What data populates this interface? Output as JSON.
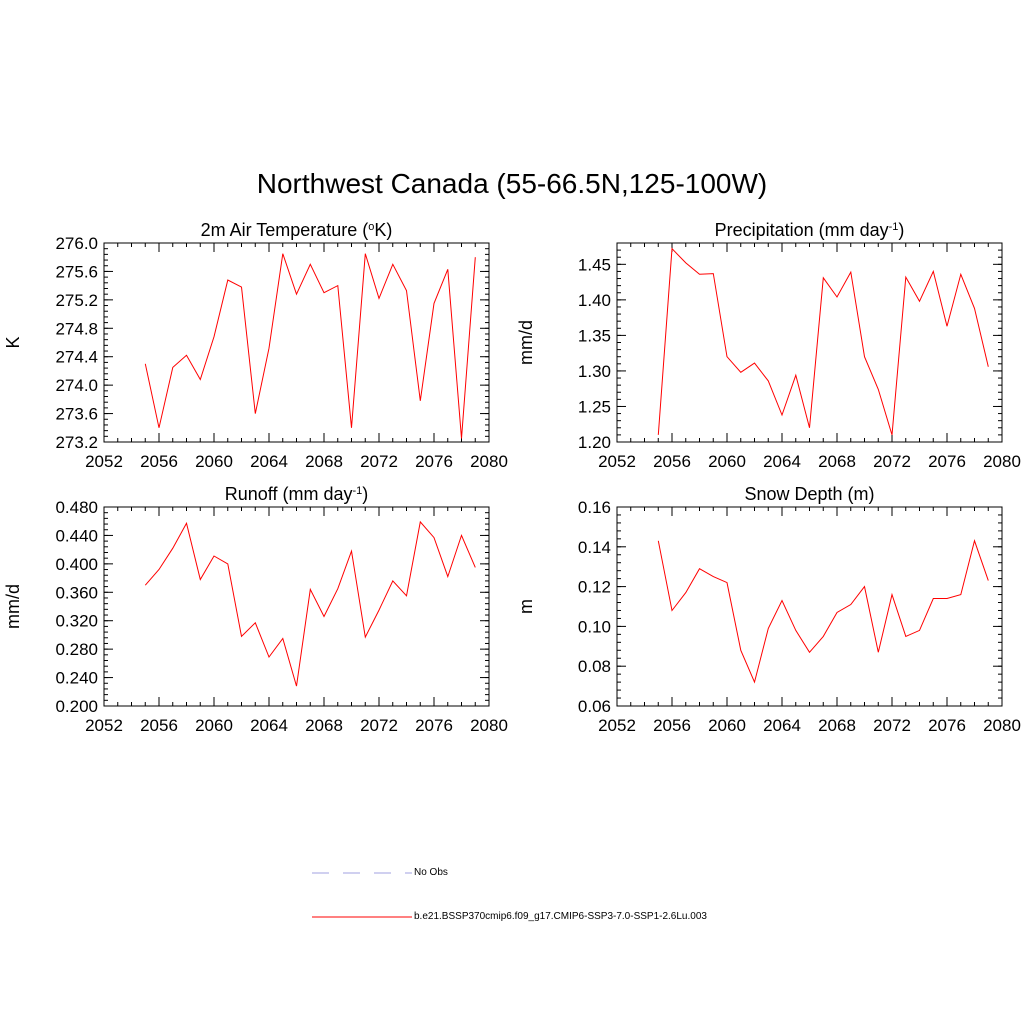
{
  "figure": {
    "title": "Northwest Canada (55-66.5N,125-100W)"
  },
  "chart_data": [
    {
      "type": "line",
      "title": "2m Air Temperature (°K)",
      "title_main": "2m Air Temperature (",
      "title_sup": "o",
      "title_tail": "K)",
      "xlabel": "",
      "ylabel": "K",
      "xlim": [
        2052,
        2080
      ],
      "ylim": [
        273.2,
        276.0
      ],
      "xticks": [
        "2052",
        "2056",
        "2060",
        "2064",
        "2068",
        "2072",
        "2076",
        "2080"
      ],
      "yticks": [
        "273.2",
        "273.6",
        "274.0",
        "274.4",
        "274.8",
        "275.2",
        "275.6",
        "276.0"
      ],
      "x": [
        2055,
        2056,
        2057,
        2058,
        2059,
        2060,
        2061,
        2062,
        2063,
        2064,
        2065,
        2066,
        2067,
        2068,
        2069,
        2070,
        2071,
        2072,
        2073,
        2074,
        2075,
        2076,
        2077,
        2078,
        2079
      ],
      "series": [
        {
          "values": [
            274.3,
            273.4,
            274.25,
            274.42,
            274.08,
            274.68,
            275.48,
            275.38,
            273.6,
            274.52,
            275.85,
            275.28,
            275.7,
            275.3,
            275.4,
            273.4,
            275.85,
            275.22,
            275.7,
            275.33,
            273.78,
            275.15,
            275.63,
            273.25,
            275.8
          ],
          "color": "#ff0000"
        }
      ]
    },
    {
      "type": "line",
      "title": "Precipitation (mm day-1)",
      "title_main": "Precipitation (mm day",
      "title_sup": "-1",
      "title_tail": ")",
      "xlabel": "",
      "ylabel": "mm/d",
      "xlim": [
        2052,
        2080
      ],
      "ylim": [
        1.2,
        1.48
      ],
      "xticks": [
        "2052",
        "2056",
        "2060",
        "2064",
        "2068",
        "2072",
        "2076",
        "2080"
      ],
      "yticks": [
        "1.20",
        "1.25",
        "1.30",
        "1.35",
        "1.40",
        "1.45"
      ],
      "x": [
        2055,
        2056,
        2057,
        2058,
        2059,
        2060,
        2061,
        2062,
        2063,
        2064,
        2065,
        2066,
        2067,
        2068,
        2069,
        2070,
        2071,
        2072,
        2073,
        2074,
        2075,
        2076,
        2077,
        2078,
        2079
      ],
      "series": [
        {
          "values": [
            1.21,
            1.472,
            1.452,
            1.436,
            1.437,
            1.32,
            1.298,
            1.311,
            1.286,
            1.238,
            1.294,
            1.22,
            1.431,
            1.404,
            1.439,
            1.32,
            1.274,
            1.21,
            1.432,
            1.398,
            1.44,
            1.363,
            1.436,
            1.388,
            1.306
          ],
          "color": "#ff0000"
        }
      ]
    },
    {
      "type": "line",
      "title": "Runoff (mm day-1)",
      "title_main": "Runoff (mm day",
      "title_sup": "-1",
      "title_tail": ")",
      "xlabel": "",
      "ylabel": "mm/d",
      "xlim": [
        2052,
        2080
      ],
      "ylim": [
        0.2,
        0.48
      ],
      "xticks": [
        "2052",
        "2056",
        "2060",
        "2064",
        "2068",
        "2072",
        "2076",
        "2080"
      ],
      "yticks": [
        "0.200",
        "0.240",
        "0.280",
        "0.320",
        "0.360",
        "0.400",
        "0.440",
        "0.480"
      ],
      "x": [
        2055,
        2056,
        2057,
        2058,
        2059,
        2060,
        2061,
        2062,
        2063,
        2064,
        2065,
        2066,
        2067,
        2068,
        2069,
        2070,
        2071,
        2072,
        2073,
        2074,
        2075,
        2076,
        2077,
        2078,
        2079
      ],
      "series": [
        {
          "values": [
            0.37,
            0.392,
            0.422,
            0.457,
            0.378,
            0.411,
            0.4,
            0.298,
            0.317,
            0.269,
            0.295,
            0.228,
            0.364,
            0.326,
            0.365,
            0.418,
            0.297,
            0.335,
            0.376,
            0.355,
            0.459,
            0.437,
            0.382,
            0.44,
            0.395
          ],
          "color": "#ff0000"
        }
      ]
    },
    {
      "type": "line",
      "title": "Snow Depth (m)",
      "title_main": "Snow Depth (m)",
      "title_sup": "",
      "title_tail": "",
      "xlabel": "",
      "ylabel": "m",
      "xlim": [
        2052,
        2080
      ],
      "ylim": [
        0.06,
        0.16
      ],
      "xticks": [
        "2052",
        "2056",
        "2060",
        "2064",
        "2068",
        "2072",
        "2076",
        "2080"
      ],
      "yticks": [
        "0.06",
        "0.08",
        "0.10",
        "0.12",
        "0.14",
        "0.16"
      ],
      "x": [
        2055,
        2056,
        2057,
        2058,
        2059,
        2060,
        2061,
        2062,
        2063,
        2064,
        2065,
        2066,
        2067,
        2068,
        2069,
        2070,
        2071,
        2072,
        2073,
        2074,
        2075,
        2076,
        2077,
        2078,
        2079
      ],
      "series": [
        {
          "values": [
            0.143,
            0.108,
            0.117,
            0.129,
            0.125,
            0.122,
            0.088,
            0.072,
            0.099,
            0.113,
            0.098,
            0.087,
            0.095,
            0.107,
            0.111,
            0.12,
            0.087,
            0.116,
            0.095,
            0.098,
            0.114,
            0.114,
            0.116,
            0.143,
            0.123
          ],
          "color": "#ff0000"
        }
      ]
    }
  ],
  "legend": {
    "placement": "bottom",
    "entries": [
      {
        "label": "No Obs",
        "color": "#a0a0e0",
        "style": "dashed"
      },
      {
        "label": "b.e21.BSSP370cmip6.f09_g17.CMIP6-SSP3-7.0-SSP1-2.6Lu.003",
        "color": "#ff0000",
        "style": "solid"
      }
    ]
  }
}
